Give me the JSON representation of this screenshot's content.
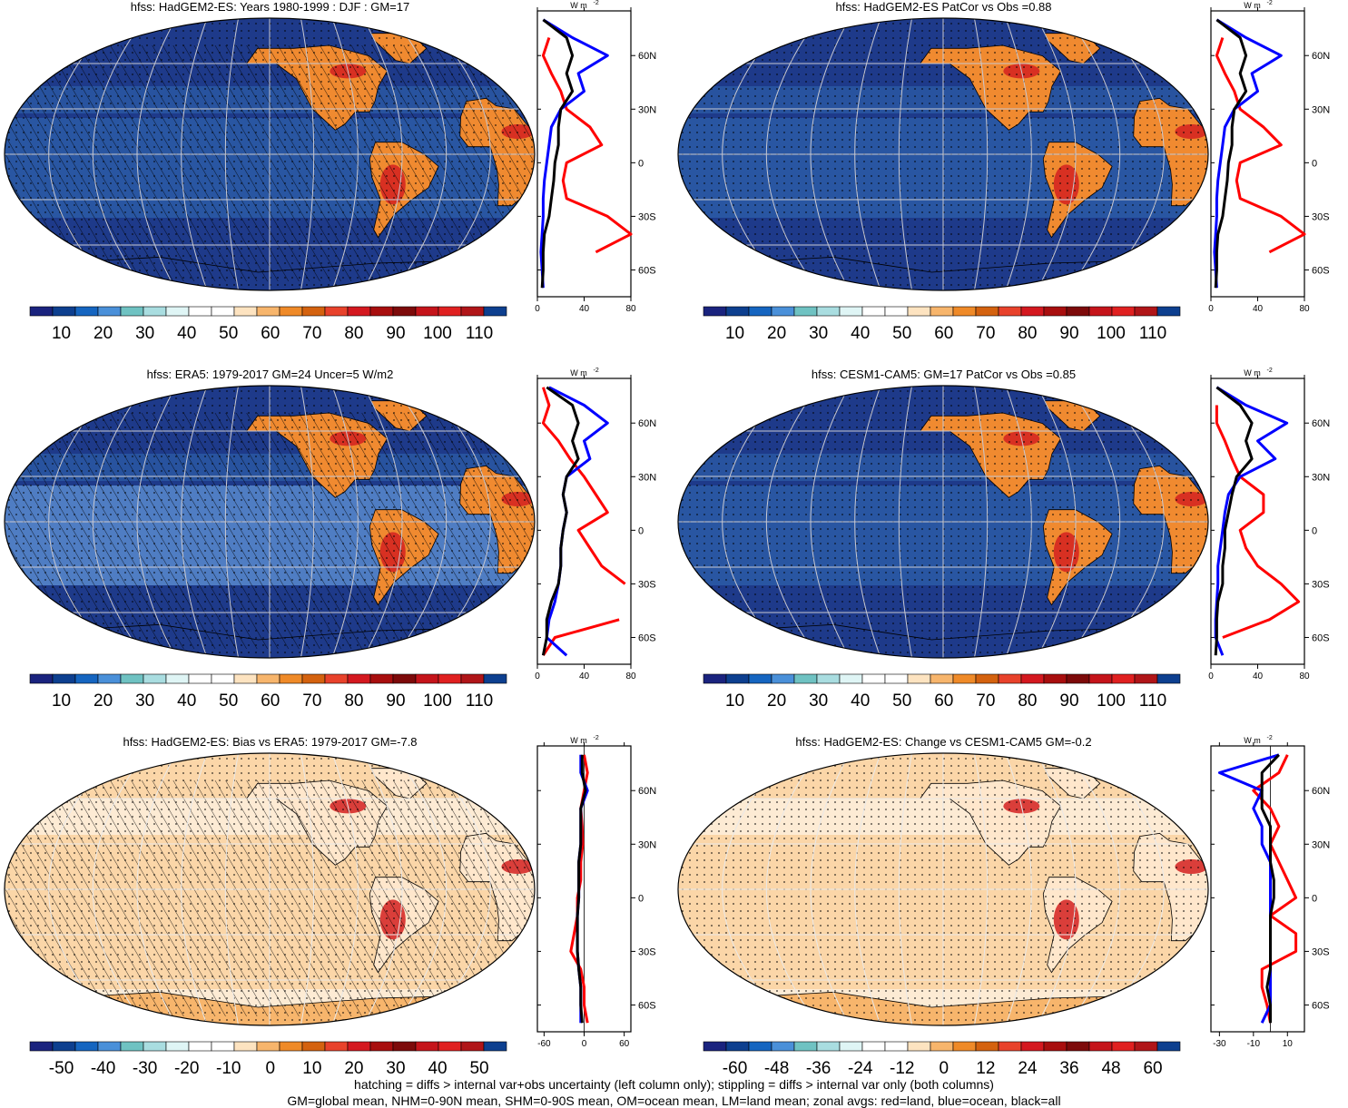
{
  "panels": [
    {
      "title": "hfss: HadGEM2-ES: Years 1980-1999 : DJF : GM=17",
      "scale": "abs",
      "profile_units": "W m",
      "profile_units_sup": "-2",
      "profile_xticks": [
        "0",
        "40",
        "80"
      ],
      "profile_xrange": [
        0,
        80
      ],
      "lat_labels": [
        "60N",
        "30N",
        "0",
        "30S",
        "60S"
      ]
    },
    {
      "title": "hfss: HadGEM2-ES PatCor vs Obs =0.88",
      "scale": "abs",
      "profile_units": "W m",
      "profile_units_sup": "-2",
      "profile_xticks": [
        "0",
        "40",
        "80"
      ],
      "profile_xrange": [
        0,
        80
      ],
      "lat_labels": [
        "60N",
        "30N",
        "0",
        "30S",
        "60S"
      ]
    },
    {
      "title": "hfss: ERA5: 1979-2017 GM=24 Uncer=5 W/m2",
      "scale": "abs",
      "profile_units": "W m",
      "profile_units_sup": "-2",
      "profile_xticks": [
        "0",
        "40",
        "80"
      ],
      "profile_xrange": [
        0,
        80
      ],
      "lat_labels": [
        "60N",
        "30N",
        "0",
        "30S",
        "60S"
      ]
    },
    {
      "title": "hfss: CESM1-CAM5: GM=17 PatCor vs Obs =0.85",
      "scale": "abs",
      "profile_units": "W m",
      "profile_units_sup": "-2",
      "profile_xticks": [
        "0",
        "40",
        "80"
      ],
      "profile_xrange": [
        0,
        80
      ],
      "lat_labels": [
        "60N",
        "30N",
        "0",
        "30S",
        "60S"
      ]
    },
    {
      "title": "hfss: HadGEM2-ES: Bias vs ERA5: 1979-2017 GM=-7.8",
      "scale": "diff50",
      "profile_units": "W m",
      "profile_units_sup": "-2",
      "profile_xticks": [
        "-60",
        "0",
        "60"
      ],
      "profile_xrange": [
        -70,
        70
      ],
      "lat_labels": [
        "60N",
        "30N",
        "0",
        "30S",
        "60S"
      ]
    },
    {
      "title": "hfss: HadGEM2-ES: Change vs CESM1-CAM5 GM=-0.2",
      "scale": "diff60",
      "profile_units": "W m",
      "profile_units_sup": "-2",
      "profile_xticks": [
        "-30",
        "-10",
        "10"
      ],
      "profile_xrange": [
        -35,
        20
      ],
      "lat_labels": [
        "60N",
        "30N",
        "0",
        "30S",
        "60S"
      ]
    }
  ],
  "colorbars": {
    "abs": {
      "labels": [
        "10",
        "20",
        "30",
        "40",
        "50",
        "60",
        "70",
        "80",
        "90",
        "100",
        "110"
      ],
      "colors": [
        "#1a237e",
        "#0d3f8f",
        "#1565c0",
        "#4a90d9",
        "#6fc2c2",
        "#a9dde0",
        "#dff5f5",
        "#ffffff",
        "#ffffff",
        "#fde3c0",
        "#f7b56c",
        "#ef8a28",
        "#d4620f",
        "#e8422b",
        "#d4181f",
        "#a80e0e",
        "#7d0a0a",
        "#c5141a",
        "#e02020",
        "#b01518",
        "#0d3f8f"
      ]
    },
    "diff50": {
      "labels": [
        "-50",
        "-40",
        "-30",
        "-20",
        "-10",
        "0",
        "10",
        "20",
        "30",
        "40",
        "50"
      ],
      "colors": [
        "#1a237e",
        "#0d3f8f",
        "#1565c0",
        "#4a90d9",
        "#6fc2c2",
        "#a9dde0",
        "#dff5f5",
        "#ffffff",
        "#ffffff",
        "#fde3c0",
        "#f7b56c",
        "#ef8a28",
        "#d4620f",
        "#e8422b",
        "#d4181f",
        "#a80e0e",
        "#7d0a0a",
        "#c5141a",
        "#e02020",
        "#b01518",
        "#0d3f8f"
      ]
    },
    "diff60": {
      "labels": [
        "-60",
        "-48",
        "-36",
        "-24",
        "-12",
        "0",
        "12",
        "24",
        "36",
        "48",
        "60"
      ],
      "colors": [
        "#1a237e",
        "#0d3f8f",
        "#1565c0",
        "#4a90d9",
        "#6fc2c2",
        "#a9dde0",
        "#dff5f5",
        "#ffffff",
        "#ffffff",
        "#fde3c0",
        "#f7b56c",
        "#ef8a28",
        "#d4620f",
        "#e8422b",
        "#d4181f",
        "#a80e0e",
        "#7d0a0a",
        "#c5141a",
        "#e02020",
        "#b01518",
        "#0d3f8f"
      ]
    }
  },
  "map_colors": {
    "ocean_abs": "#1e3a8a",
    "ocean_abs_mid": "#2c5ea8",
    "ocean_abs_light": "#5b8fd1",
    "land_hot": "#d42020",
    "land_warm": "#f08a30",
    "ocean_diff": "#fbd6a8",
    "ocean_diff_white": "#ffffff",
    "diff_hot": "#d42020"
  },
  "profile_colors": {
    "land": "#ff0000",
    "ocean": "#0000ff",
    "all": "#000000"
  },
  "footer": {
    "line1": "hatching = diffs > internal var+obs uncertainty (left column only); stippling = diffs > internal var only (both columns)",
    "line2": "GM=global mean, NHM=0-90N mean, SHM=0-90S mean, OM=ocean mean, LM=land mean; zonal avgs: red=land, blue=ocean, black=all"
  },
  "chart_data": [
    {
      "type": "line",
      "title": "hfss: HadGEM2-ES: Years 1980-1999 : DJF : GM=17",
      "xlabel": "W m-2",
      "ylabel": "",
      "xlim": [
        0,
        80
      ],
      "ylim": [
        -75,
        85
      ],
      "y": [
        80,
        70,
        60,
        50,
        40,
        30,
        20,
        10,
        0,
        -10,
        -20,
        -30,
        -40,
        -50,
        -60,
        -70
      ],
      "series": [
        {
          "name": "red",
          "values": [
            null,
            10,
            5,
            12,
            20,
            25,
            45,
            55,
            25,
            22,
            25,
            60,
            80,
            50,
            null,
            null
          ]
        },
        {
          "name": "blue",
          "values": [
            5,
            30,
            60,
            35,
            40,
            20,
            12,
            10,
            8,
            6,
            5,
            5,
            4,
            3,
            4,
            5
          ]
        },
        {
          "name": "black",
          "values": [
            5,
            25,
            30,
            25,
            30,
            20,
            18,
            18,
            15,
            14,
            12,
            10,
            6,
            5,
            5,
            4
          ]
        }
      ]
    },
    {
      "type": "line",
      "title": "hfss: HadGEM2-ES PatCor vs Obs =0.88",
      "xlabel": "W m-2",
      "ylabel": "",
      "xlim": [
        0,
        80
      ],
      "ylim": [
        -75,
        85
      ],
      "y": [
        80,
        70,
        60,
        50,
        40,
        30,
        20,
        10,
        0,
        -10,
        -20,
        -30,
        -40,
        -50,
        -60,
        -70
      ],
      "series": [
        {
          "name": "red",
          "values": [
            null,
            10,
            5,
            12,
            20,
            25,
            45,
            60,
            25,
            22,
            25,
            60,
            80,
            50,
            null,
            null
          ]
        },
        {
          "name": "blue",
          "values": [
            5,
            30,
            60,
            35,
            40,
            20,
            12,
            10,
            8,
            6,
            5,
            5,
            4,
            3,
            4,
            5
          ]
        },
        {
          "name": "black",
          "values": [
            5,
            25,
            30,
            25,
            30,
            20,
            18,
            18,
            15,
            14,
            12,
            10,
            6,
            5,
            5,
            4
          ]
        }
      ]
    },
    {
      "type": "line",
      "title": "hfss: ERA5: 1979-2017 GM=24 Uncer=5 W/m2",
      "xlabel": "W m-2",
      "ylabel": "",
      "xlim": [
        0,
        80
      ],
      "ylim": [
        -75,
        85
      ],
      "y": [
        80,
        70,
        60,
        50,
        40,
        30,
        20,
        10,
        0,
        -10,
        -20,
        -30,
        -40,
        -50,
        -60,
        -70
      ],
      "series": [
        {
          "name": "red",
          "values": [
            5,
            10,
            5,
            18,
            28,
            40,
            50,
            60,
            35,
            45,
            55,
            75,
            null,
            70,
            15,
            5
          ]
        },
        {
          "name": "blue",
          "values": [
            10,
            40,
            60,
            40,
            45,
            25,
            22,
            25,
            22,
            20,
            20,
            18,
            15,
            10,
            8,
            25
          ]
        },
        {
          "name": "black",
          "values": [
            8,
            30,
            35,
            30,
            35,
            25,
            22,
            25,
            22,
            20,
            20,
            18,
            12,
            8,
            8,
            5
          ]
        }
      ]
    },
    {
      "type": "line",
      "title": "hfss: CESM1-CAM5: GM=17 PatCor vs Obs =0.85",
      "xlabel": "W m-2",
      "ylabel": "",
      "xlim": [
        0,
        80
      ],
      "ylim": [
        -75,
        85
      ],
      "y": [
        80,
        70,
        60,
        50,
        40,
        30,
        20,
        10,
        0,
        -10,
        -20,
        -30,
        -40,
        -50,
        -60,
        -70
      ],
      "series": [
        {
          "name": "red",
          "values": [
            null,
            5,
            5,
            12,
            18,
            25,
            45,
            45,
            25,
            30,
            40,
            60,
            75,
            50,
            10,
            null
          ]
        },
        {
          "name": "blue",
          "values": [
            5,
            30,
            65,
            40,
            55,
            25,
            15,
            12,
            10,
            8,
            6,
            6,
            5,
            4,
            4,
            10
          ]
        },
        {
          "name": "black",
          "values": [
            5,
            25,
            35,
            30,
            35,
            22,
            18,
            15,
            12,
            12,
            10,
            10,
            6,
            5,
            5,
            4
          ]
        }
      ]
    },
    {
      "type": "line",
      "title": "hfss: HadGEM2-ES: Bias vs ERA5: 1979-2017 GM=-7.8",
      "xlabel": "W m-2",
      "ylabel": "",
      "xlim": [
        -70,
        70
      ],
      "ylim": [
        -75,
        85
      ],
      "y": [
        80,
        70,
        60,
        50,
        40,
        30,
        20,
        10,
        0,
        -10,
        -20,
        -30,
        -40,
        -50,
        -60,
        -70
      ],
      "series": [
        {
          "name": "red",
          "values": [
            0,
            5,
            0,
            -5,
            -3,
            -2,
            -5,
            -5,
            -10,
            -10,
            -15,
            -20,
            -5,
            0,
            0,
            5
          ]
        },
        {
          "name": "blue",
          "values": [
            -5,
            -5,
            5,
            -5,
            -5,
            -5,
            -8,
            -8,
            -8,
            -10,
            -10,
            -10,
            -8,
            -5,
            -5,
            -5
          ]
        },
        {
          "name": "black",
          "values": [
            -3,
            -3,
            2,
            -5,
            -5,
            -5,
            -8,
            -8,
            -8,
            -10,
            -10,
            -10,
            -8,
            -5,
            -5,
            -3
          ]
        }
      ]
    },
    {
      "type": "line",
      "title": "hfss: HadGEM2-ES: Change vs CESM1-CAM5 GM=-0.2",
      "xlabel": "W m-2",
      "ylabel": "",
      "xlim": [
        -35,
        20
      ],
      "ylim": [
        -75,
        85
      ],
      "y": [
        80,
        70,
        60,
        50,
        40,
        30,
        20,
        10,
        0,
        -10,
        -20,
        -30,
        -40,
        -50,
        -60,
        -70
      ],
      "series": [
        {
          "name": "red",
          "values": [
            10,
            5,
            -10,
            0,
            5,
            0,
            5,
            10,
            15,
            0,
            15,
            15,
            -5,
            -5,
            -2,
            0
          ]
        },
        {
          "name": "blue",
          "values": [
            5,
            -30,
            -5,
            -10,
            -5,
            -5,
            0,
            0,
            0,
            0,
            0,
            0,
            0,
            0,
            0,
            -5
          ]
        },
        {
          "name": "black",
          "values": [
            5,
            -5,
            -5,
            -5,
            0,
            0,
            0,
            2,
            2,
            0,
            0,
            0,
            0,
            -2,
            0,
            0
          ]
        }
      ]
    }
  ]
}
